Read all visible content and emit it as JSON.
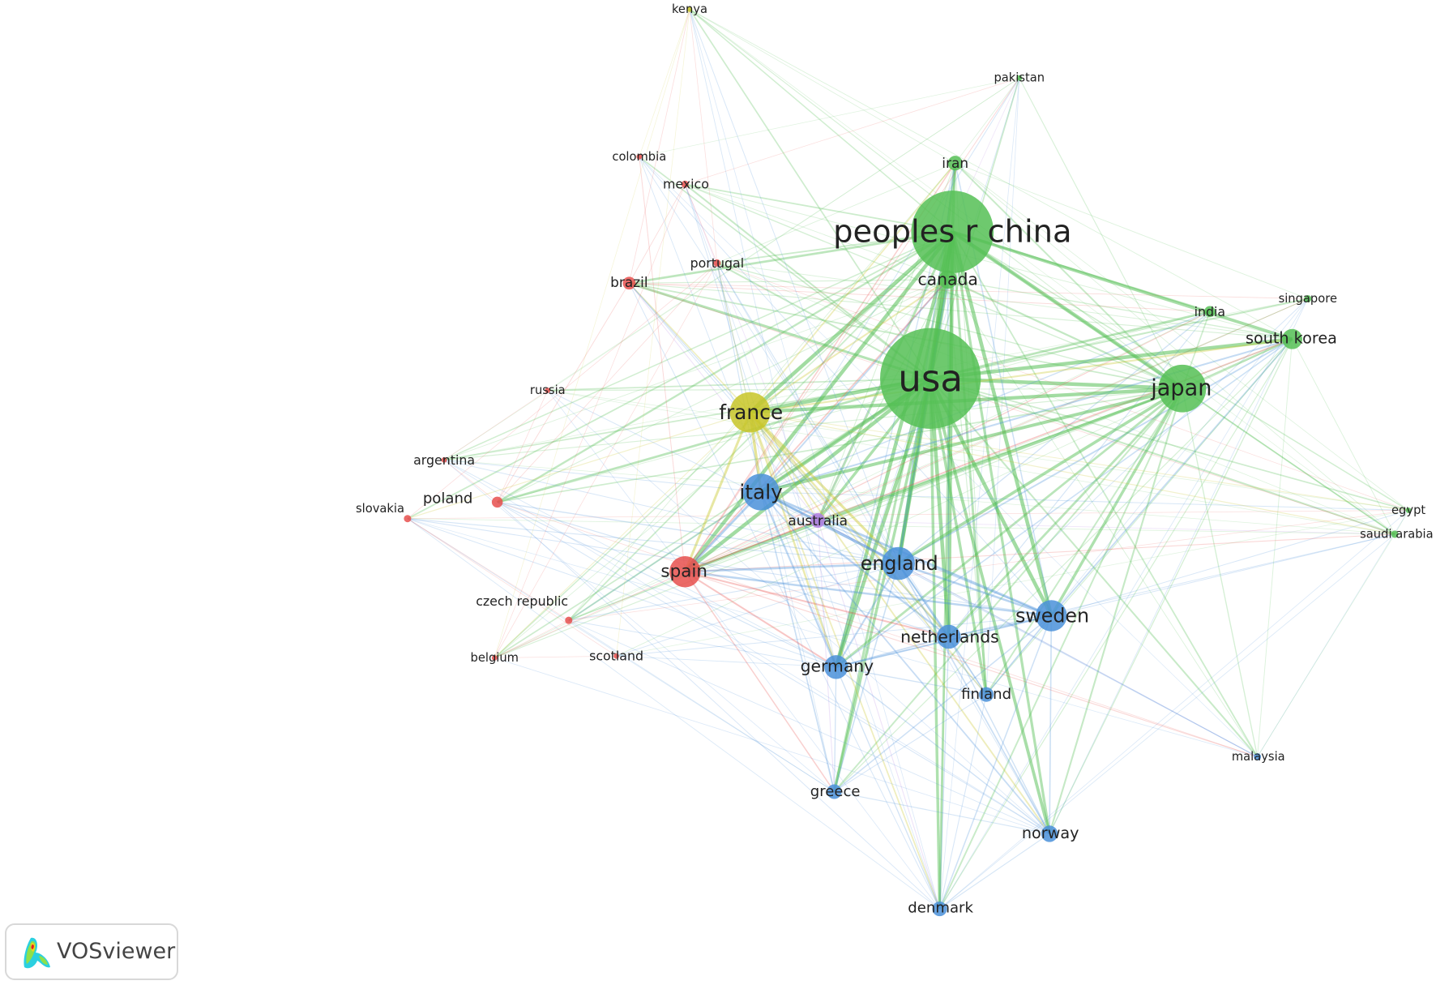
{
  "clusters": {
    "red": "#e8504d",
    "green": "#55bf55",
    "blue": "#4a90d9",
    "yellow": "#c8c628",
    "purple": "#b07ee0"
  },
  "nodes": [
    {
      "label": "peoples r china",
      "cluster": "green"
    },
    {
      "label": "usa",
      "cluster": "green"
    },
    {
      "label": "canada",
      "cluster": "green"
    },
    {
      "label": "iran",
      "cluster": "green"
    },
    {
      "label": "pakistan",
      "cluster": "green"
    },
    {
      "label": "india",
      "cluster": "green"
    },
    {
      "label": "singapore",
      "cluster": "green"
    },
    {
      "label": "south korea",
      "cluster": "green"
    },
    {
      "label": "japan",
      "cluster": "green"
    },
    {
      "label": "egypt",
      "cluster": "green"
    },
    {
      "label": "saudi arabia",
      "cluster": "green"
    },
    {
      "label": "france",
      "cluster": "yellow"
    },
    {
      "label": "kenya",
      "cluster": "yellow"
    },
    {
      "label": "italy",
      "cluster": "blue"
    },
    {
      "label": "australia",
      "cluster": "purple"
    },
    {
      "label": "england",
      "cluster": "blue"
    },
    {
      "label": "sweden",
      "cluster": "blue"
    },
    {
      "label": "netherlands",
      "cluster": "blue"
    },
    {
      "label": "germany",
      "cluster": "blue"
    },
    {
      "label": "finland",
      "cluster": "blue"
    },
    {
      "label": "greece",
      "cluster": "blue"
    },
    {
      "label": "norway",
      "cluster": "blue"
    },
    {
      "label": "denmark",
      "cluster": "blue"
    },
    {
      "label": "malaysia",
      "cluster": "blue"
    },
    {
      "label": "spain",
      "cluster": "red"
    },
    {
      "label": "poland",
      "cluster": "red"
    },
    {
      "label": "slovakia",
      "cluster": "red"
    },
    {
      "label": "argentina",
      "cluster": "red"
    },
    {
      "label": "russia",
      "cluster": "red"
    },
    {
      "label": "brazil",
      "cluster": "red"
    },
    {
      "label": "portugal",
      "cluster": "red"
    },
    {
      "label": "mexico",
      "cluster": "red"
    },
    {
      "label": "colombia",
      "cluster": "red"
    },
    {
      "label": "czech republic",
      "cluster": "red"
    },
    {
      "label": "belgium",
      "cluster": "red"
    },
    {
      "label": "scotland",
      "cluster": "red"
    }
  ],
  "logo": {
    "text": "VOSviewer"
  }
}
